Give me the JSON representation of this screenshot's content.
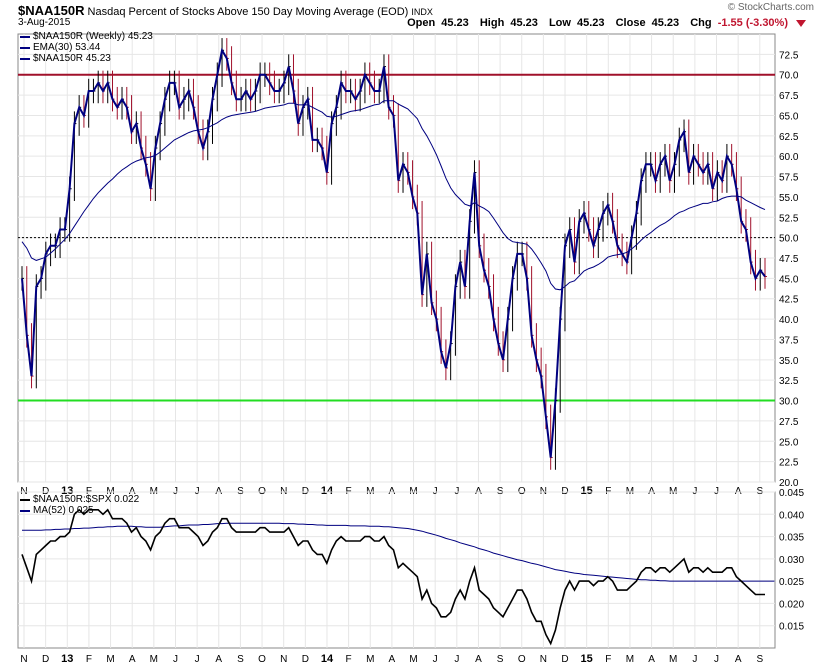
{
  "header": {
    "symbol": "$NAA150R",
    "title": "Nasdaq Percent of Stocks Above 150 Day Moving Average (EOD)",
    "exchange": "INDX",
    "date": "3-Aug-2015",
    "copyright": "© StockCharts.com",
    "open_label": "Open",
    "open": "45.23",
    "high_label": "High",
    "high": "45.23",
    "low_label": "Low",
    "low": "45.23",
    "close_label": "Close",
    "close": "45.23",
    "chg_label": "Chg",
    "chg": "-1.55 (-3.30%)",
    "chg_color": "#c0152f"
  },
  "legend_main": [
    {
      "text": "$NAA150R (Weekly) 45.23",
      "color": "#000080",
      "icon": "ohlc-bar-icon"
    },
    {
      "text": "EMA(30) 53.44",
      "color": "#000080",
      "icon": "line-icon"
    },
    {
      "text": "$NAA150R 45.23",
      "color": "#000080",
      "icon": "line-icon"
    }
  ],
  "legend_lower": [
    {
      "text": "$NAA150R:$SPX 0.022",
      "color": "#000000",
      "icon": "line-icon"
    },
    {
      "text": "MA(52) 0.025",
      "color": "#000080",
      "icon": "line-icon"
    }
  ],
  "x_labels": [
    "N",
    "D",
    "13",
    "F",
    "M",
    "A",
    "M",
    "J",
    "J",
    "A",
    "S",
    "O",
    "N",
    "D",
    "14",
    "F",
    "M",
    "A",
    "M",
    "J",
    "J",
    "A",
    "S",
    "O",
    "N",
    "D",
    "15",
    "F",
    "M",
    "A",
    "M",
    "J",
    "J",
    "A",
    "S"
  ],
  "colors": {
    "price": "#000080",
    "ema": "#000080",
    "up_bar": "#000000",
    "down_bar": "#a0102a",
    "line_70": "#a0102a",
    "line_30": "#22dd22",
    "ratio": "#000000",
    "ma": "#000080",
    "grid": "#e6e6e6"
  },
  "chart_data": [
    {
      "type": "line",
      "title": "$NAA150R Nasdaq Percent of Stocks Above 150 Day Moving Average (EOD)",
      "ylim": [
        20,
        75
      ],
      "yticks": [
        "20.0",
        "22.5",
        "25.0",
        "27.5",
        "30.0",
        "32.5",
        "35.0",
        "37.5",
        "40.0",
        "42.5",
        "45.0",
        "47.5",
        "50.0",
        "52.5",
        "55.0",
        "57.5",
        "60.0",
        "62.5",
        "65.0",
        "67.5",
        "70.0",
        "72.5"
      ],
      "reference_lines": [
        70,
        50,
        30
      ],
      "series": [
        {
          "name": "$NAA150R (Weekly) 45.23",
          "values": [
            45,
            38,
            33,
            44,
            45,
            48,
            49,
            49,
            51,
            51,
            56,
            64,
            66,
            65,
            68,
            68,
            69,
            68,
            69,
            67,
            66,
            67,
            66,
            63,
            64,
            61,
            59,
            56,
            61,
            64,
            67,
            69,
            69,
            66,
            67,
            68,
            66,
            63,
            61,
            63,
            67,
            70,
            73,
            72,
            69,
            67,
            67,
            68,
            67,
            68,
            70,
            70,
            69,
            68,
            68,
            69,
            71,
            68,
            64,
            66,
            67,
            62,
            62,
            61,
            58,
            64,
            66,
            69,
            68,
            68,
            67,
            68,
            70,
            69,
            68,
            68,
            71,
            66,
            65,
            57,
            59,
            58,
            55,
            53,
            43,
            48,
            42,
            40,
            36,
            34,
            37,
            44,
            47,
            44,
            52,
            58,
            49,
            46,
            44,
            40,
            37,
            35,
            40,
            45,
            48,
            48,
            45,
            38,
            35,
            33,
            28,
            23,
            30,
            40,
            49,
            51,
            47,
            52,
            53,
            51,
            49,
            51,
            53,
            54,
            52,
            49,
            48,
            47,
            50,
            53,
            57,
            59,
            59,
            57,
            59,
            60,
            57,
            59,
            62,
            63,
            58,
            60,
            59,
            58,
            59,
            56,
            58,
            57,
            60,
            59,
            56,
            52,
            51,
            47,
            45,
            46,
            45.23
          ]
        },
        {
          "name": "EMA(30) 53.44",
          "values": [
            49.5,
            48.7,
            47.5,
            47.2,
            47.4,
            47.6,
            48.1,
            48.6,
            49.2,
            49.8,
            50.5,
            51.4,
            52.3,
            53.2,
            54,
            54.8,
            55.5,
            56.1,
            56.7,
            57.2,
            57.8,
            58.3,
            58.7,
            59.1,
            59.4,
            59.6,
            59.8,
            59.9,
            60.1,
            60.5,
            61,
            61.5,
            62,
            62.3,
            62.6,
            62.9,
            63.1,
            63.2,
            63.3,
            63.5,
            63.8,
            64.1,
            64.5,
            64.8,
            65,
            65.1,
            65.2,
            65.3,
            65.4,
            65.5,
            65.7,
            65.9,
            66,
            66.1,
            66.2,
            66.3,
            66.5,
            66.5,
            66.3,
            66.3,
            66.3,
            66,
            65.7,
            65.4,
            64.9,
            64.8,
            64.9,
            65.1,
            65.3,
            65.5,
            65.6,
            65.7,
            65.9,
            66.1,
            66.3,
            66.4,
            66.8,
            66.8,
            66.8,
            66.4,
            66.1,
            65.8,
            65.2,
            64.6,
            63.4,
            62.5,
            61.4,
            60.2,
            58.8,
            57.3,
            56.1,
            55.3,
            54.7,
            54.1,
            53.9,
            54.3,
            53.9,
            53.6,
            53.2,
            52.4,
            51.5,
            50.6,
            49.9,
            49.5,
            49.4,
            49.3,
            49.2,
            48.6,
            47.8,
            46.9,
            45.9,
            44.4,
            43.7,
            43.6,
            44,
            44.5,
            44.7,
            45.3,
            45.9,
            46.2,
            46.4,
            46.7,
            47.1,
            47.6,
            47.8,
            47.9,
            48,
            48.2,
            48.6,
            49.1,
            49.7,
            50.2,
            50.6,
            51.1,
            51.5,
            51.8,
            52.2,
            52.7,
            53.1,
            53.3,
            53.6,
            53.8,
            54,
            54.2,
            54.2,
            54.4,
            54.5,
            54.8,
            55,
            55.1,
            55.1,
            55,
            54.6,
            54.3,
            54,
            53.7,
            53.44
          ]
        }
      ]
    },
    {
      "type": "line",
      "title": "$NAA150R:$SPX",
      "ylim": [
        0.01,
        0.045
      ],
      "yticks": [
        "0.015",
        "0.020",
        "0.025",
        "0.030",
        "0.035",
        "0.040",
        "0.045"
      ],
      "series": [
        {
          "name": "$NAA150R:$SPX 0.022",
          "values": [
            0.031,
            0.028,
            0.025,
            0.031,
            0.032,
            0.033,
            0.034,
            0.034,
            0.035,
            0.035,
            0.036,
            0.04,
            0.041,
            0.04,
            0.041,
            0.041,
            0.041,
            0.04,
            0.041,
            0.039,
            0.039,
            0.039,
            0.038,
            0.036,
            0.037,
            0.035,
            0.034,
            0.032,
            0.035,
            0.036,
            0.038,
            0.039,
            0.039,
            0.037,
            0.037,
            0.037,
            0.036,
            0.035,
            0.033,
            0.034,
            0.036,
            0.037,
            0.039,
            0.039,
            0.037,
            0.036,
            0.036,
            0.036,
            0.036,
            0.036,
            0.037,
            0.037,
            0.036,
            0.036,
            0.036,
            0.036,
            0.037,
            0.035,
            0.033,
            0.034,
            0.034,
            0.032,
            0.031,
            0.031,
            0.029,
            0.032,
            0.034,
            0.035,
            0.034,
            0.034,
            0.034,
            0.034,
            0.035,
            0.035,
            0.034,
            0.034,
            0.035,
            0.033,
            0.032,
            0.028,
            0.029,
            0.028,
            0.027,
            0.026,
            0.021,
            0.023,
            0.02,
            0.019,
            0.017,
            0.017,
            0.018,
            0.021,
            0.023,
            0.021,
            0.025,
            0.028,
            0.023,
            0.022,
            0.021,
            0.019,
            0.018,
            0.017,
            0.019,
            0.021,
            0.023,
            0.023,
            0.021,
            0.018,
            0.016,
            0.016,
            0.013,
            0.011,
            0.014,
            0.019,
            0.023,
            0.025,
            0.023,
            0.025,
            0.025,
            0.025,
            0.024,
            0.025,
            0.025,
            0.026,
            0.025,
            0.023,
            0.023,
            0.023,
            0.024,
            0.025,
            0.027,
            0.028,
            0.028,
            0.027,
            0.028,
            0.028,
            0.027,
            0.028,
            0.029,
            0.03,
            0.027,
            0.028,
            0.028,
            0.027,
            0.028,
            0.027,
            0.027,
            0.027,
            0.028,
            0.028,
            0.026,
            0.025,
            0.024,
            0.023,
            0.022,
            0.022,
            0.022
          ]
        },
        {
          "name": "MA(52) 0.025",
          "values": [
            0.0364,
            0.0364,
            0.0364,
            0.0364,
            0.0364,
            0.0365,
            0.0365,
            0.0366,
            0.0366,
            0.0367,
            0.0367,
            0.0368,
            0.0368,
            0.0369,
            0.0369,
            0.037,
            0.0371,
            0.0371,
            0.0372,
            0.0372,
            0.0373,
            0.0373,
            0.0373,
            0.0373,
            0.0372,
            0.0372,
            0.0371,
            0.0371,
            0.0371,
            0.0371,
            0.0372,
            0.0373,
            0.0374,
            0.0374,
            0.0375,
            0.0376,
            0.0376,
            0.0376,
            0.0377,
            0.0377,
            0.0378,
            0.0379,
            0.0379,
            0.038,
            0.038,
            0.038,
            0.038,
            0.038,
            0.038,
            0.038,
            0.038,
            0.038,
            0.038,
            0.038,
            0.038,
            0.0379,
            0.0379,
            0.0379,
            0.0378,
            0.0378,
            0.0377,
            0.0377,
            0.0376,
            0.0376,
            0.0375,
            0.0375,
            0.0375,
            0.0375,
            0.0375,
            0.0374,
            0.0374,
            0.0374,
            0.0374,
            0.0373,
            0.0373,
            0.0373,
            0.0372,
            0.0372,
            0.0371,
            0.037,
            0.0369,
            0.0368,
            0.0366,
            0.0364,
            0.0362,
            0.0359,
            0.0356,
            0.0353,
            0.035,
            0.0346,
            0.0343,
            0.034,
            0.0336,
            0.0333,
            0.033,
            0.0327,
            0.0323,
            0.032,
            0.0317,
            0.0313,
            0.031,
            0.0307,
            0.0304,
            0.0301,
            0.0298,
            0.0296,
            0.0293,
            0.029,
            0.0288,
            0.0285,
            0.0282,
            0.0279,
            0.0276,
            0.0274,
            0.0272,
            0.027,
            0.0268,
            0.0267,
            0.0265,
            0.0264,
            0.0263,
            0.0262,
            0.0261,
            0.026,
            0.0259,
            0.0258,
            0.0257,
            0.0256,
            0.0255,
            0.0254,
            0.0253,
            0.0253,
            0.0252,
            0.0252,
            0.0251,
            0.0251,
            0.025,
            0.025,
            0.025,
            0.025,
            0.025,
            0.025,
            0.025,
            0.025,
            0.025,
            0.025,
            0.025,
            0.025,
            0.025,
            0.025,
            0.025,
            0.025,
            0.025,
            0.025,
            0.025,
            0.025,
            0.025,
            0.025,
            0.025
          ]
        }
      ]
    }
  ]
}
